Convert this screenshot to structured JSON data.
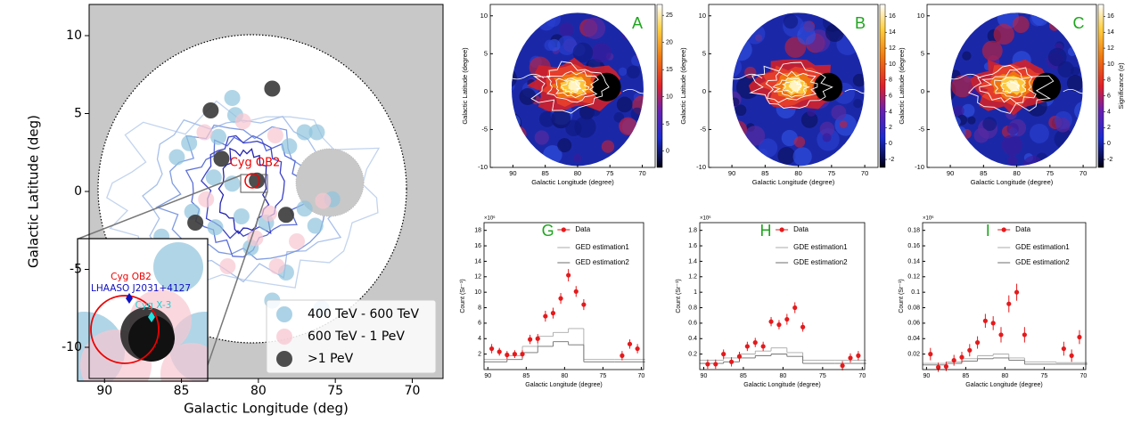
{
  "chart_data": [
    {
      "type": "scatter",
      "xlabel": "Galactic Longitude (deg)",
      "ylabel": "Galactic Latitude (deg)",
      "xlim": [
        91,
        68
      ],
      "ylim": [
        -12,
        12
      ],
      "xticks": [
        90,
        85,
        80,
        75,
        70
      ],
      "yticks": [
        -10,
        -5,
        0,
        5,
        10
      ],
      "legend": "lower right",
      "series": [
        {
          "name": "400 TeV - 600 TeV",
          "color": "#8fc3dd",
          "x": [
            81.7,
            81.5,
            84.5,
            82.6,
            77.0,
            76.2,
            78.0,
            85.3,
            82.9,
            81.7,
            84.3,
            82.8,
            81.1,
            79.5,
            77.0,
            75.2,
            76.3,
            80.5,
            78.2,
            75.9,
            79.1,
            86.3,
            88.6
          ],
          "y": [
            6.0,
            4.9,
            3.1,
            3.5,
            3.8,
            3.8,
            2.9,
            2.2,
            0.9,
            0.5,
            -1.3,
            -2.3,
            -1.6,
            -2.0,
            -1.1,
            -0.5,
            -2.2,
            -3.6,
            -5.2,
            -7.5,
            -7.0,
            -2.9,
            -3.6
          ]
        },
        {
          "name": "600 TeV - 1 PeV",
          "color": "#f8c6d0",
          "x": [
            83.5,
            78.9,
            81.0,
            83.4,
            79.3,
            80.2,
            77.5,
            78.8,
            82.0,
            85.2,
            75.8
          ],
          "y": [
            3.8,
            3.6,
            4.5,
            -0.5,
            -1.4,
            -3.0,
            -3.2,
            -4.8,
            -4.8,
            -6.1,
            -0.6
          ]
        },
        {
          "name": ">1 PeV",
          "color": "#3a3a3a",
          "x": [
            79.1,
            83.1,
            82.4,
            80.1,
            84.1,
            78.2
          ],
          "y": [
            6.6,
            5.2,
            2.1,
            0.7,
            -2.0,
            -1.5
          ]
        }
      ],
      "annotation": "Cyg OB2",
      "inset_annotations": [
        "Cyg OB2",
        "LHAASO J2031+4127",
        "Cyg X-3"
      ]
    },
    {
      "type": "heatmap",
      "panel": "A",
      "xlabel": "Galactic Longitude (degree)",
      "ylabel": "Galactic Latitude (degree)",
      "xlim": [
        93.5,
        68
      ],
      "ylim": [
        -10,
        11.5
      ],
      "xticks": [
        90,
        85,
        80,
        75,
        70
      ],
      "yticks": [
        -10,
        -5,
        0,
        5,
        10
      ],
      "clim": [
        -3,
        27
      ],
      "cticks": [
        0,
        5,
        10,
        15,
        20,
        25
      ]
    },
    {
      "type": "heatmap",
      "panel": "B",
      "xlabel": "Galactic Longitude (degree)",
      "ylabel": "Galactic Latitude (degree)",
      "xlim": [
        93.5,
        68
      ],
      "ylim": [
        -10,
        11.5
      ],
      "xticks": [
        90,
        85,
        80,
        75,
        70
      ],
      "yticks": [
        -10,
        -5,
        0,
        5,
        10
      ],
      "clim": [
        -3,
        17.5
      ],
      "cticks": [
        -2,
        0,
        2,
        4,
        6,
        8,
        10,
        12,
        14,
        16
      ]
    },
    {
      "type": "heatmap",
      "panel": "C",
      "xlabel": "Galactic Longitude (degree)",
      "ylabel": "Galactic Latitude (degree)",
      "xlim": [
        93.5,
        68
      ],
      "ylim": [
        -10,
        11.5
      ],
      "xticks": [
        90,
        85,
        80,
        75,
        70
      ],
      "yticks": [
        -10,
        -5,
        0,
        5,
        10
      ],
      "clim": [
        -3,
        17.5
      ],
      "cticks": [
        -2,
        0,
        2,
        4,
        6,
        8,
        10,
        12,
        14,
        16
      ],
      "colorbar_label": "Significance (σ)"
    },
    {
      "type": "errorbar",
      "panel": "G",
      "xlabel": "Galactic Longitude (degree)",
      "ylabel": "Count (Sr⁻¹)",
      "y_multiplier": "×10⁶",
      "xlim": [
        90.5,
        69.7
      ],
      "ylim": [
        0,
        19
      ],
      "xticks": [
        90,
        85,
        80,
        75,
        70
      ],
      "yticks": [
        2,
        4,
        6,
        8,
        10,
        12,
        14,
        16,
        18
      ],
      "x": [
        89.5,
        88.5,
        87.5,
        86.5,
        85.5,
        84.5,
        83.5,
        82.5,
        81.5,
        80.5,
        79.5,
        78.5,
        77.5,
        72.5,
        71.5,
        70.5
      ],
      "series": [
        {
          "name": "Data",
          "color": "#e41a1c",
          "values": [
            2.7,
            2.3,
            1.9,
            2.0,
            2.0,
            3.9,
            4.0,
            6.9,
            7.3,
            9.2,
            12.2,
            10.1,
            8.4,
            1.8,
            3.3,
            2.7
          ],
          "errors": [
            0.6,
            0.5,
            0.5,
            0.5,
            0.5,
            0.6,
            0.6,
            0.7,
            0.7,
            0.7,
            0.8,
            0.7,
            0.7,
            0.6,
            0.6,
            0.6
          ]
        }
      ],
      "steps": [
        {
          "name": "GED estimation1",
          "color": "#a8a8a8",
          "bins": [
            90.5,
            87.5,
            85.5,
            83.5,
            81.5,
            79.5,
            77.5,
            73.5,
            69.5
          ],
          "values": [
            1.3,
            1.8,
            3.0,
            4.3,
            4.8,
            5.3,
            1.3,
            1.3
          ]
        },
        {
          "name": "GED estimation2",
          "color": "#6e6e6e",
          "bins": [
            90.5,
            87.5,
            85.5,
            83.5,
            81.5,
            79.5,
            77.5,
            73.5,
            69.5
          ],
          "values": [
            1.0,
            1.3,
            2.2,
            3.0,
            3.6,
            3.2,
            1.0,
            1.0
          ]
        }
      ]
    },
    {
      "type": "errorbar",
      "panel": "H",
      "xlabel": "Galactic Longitude (degree)",
      "ylabel": "Count (Sr⁻¹)",
      "y_multiplier": "×10⁶",
      "xlim": [
        90.5,
        69.7
      ],
      "ylim": [
        0,
        1.9
      ],
      "xticks": [
        90,
        85,
        80,
        75,
        70
      ],
      "yticks": [
        0.2,
        0.4,
        0.6,
        0.8,
        1,
        1.2,
        1.4,
        1.6,
        1.8
      ],
      "x": [
        89.5,
        88.5,
        87.5,
        86.5,
        85.5,
        84.5,
        83.5,
        82.5,
        81.5,
        80.5,
        79.5,
        78.5,
        77.5,
        72.5,
        71.5,
        70.5
      ],
      "series": [
        {
          "name": "Data",
          "color": "#e41a1c",
          "values": [
            0.07,
            0.07,
            0.2,
            0.1,
            0.17,
            0.3,
            0.35,
            0.3,
            0.62,
            0.58,
            0.65,
            0.8,
            0.55,
            0.05,
            0.15,
            0.18
          ],
          "errors": [
            0.06,
            0.06,
            0.06,
            0.06,
            0.06,
            0.06,
            0.06,
            0.06,
            0.06,
            0.06,
            0.07,
            0.07,
            0.06,
            0.06,
            0.06,
            0.06
          ]
        }
      ],
      "steps": [
        {
          "name": "GDE estimation1",
          "color": "#a8a8a8",
          "bins": [
            90.5,
            87.5,
            85.5,
            83.5,
            81.5,
            79.5,
            77.5,
            73.5,
            69.5
          ],
          "values": [
            0.12,
            0.15,
            0.2,
            0.24,
            0.28,
            0.22,
            0.12,
            0.12
          ]
        },
        {
          "name": "GDE estimation2",
          "color": "#6e6e6e",
          "bins": [
            90.5,
            87.5,
            85.5,
            83.5,
            81.5,
            79.5,
            77.5,
            73.5,
            69.5
          ],
          "values": [
            0.08,
            0.1,
            0.15,
            0.18,
            0.2,
            0.17,
            0.08,
            0.08
          ]
        }
      ]
    },
    {
      "type": "errorbar",
      "panel": "I",
      "xlabel": "Galactic Longitude (degree)",
      "ylabel": "Count (Sr⁻¹)",
      "y_multiplier": "×10⁶",
      "xlim": [
        90.5,
        69.7
      ],
      "ylim": [
        0,
        0.19
      ],
      "xticks": [
        90,
        85,
        80,
        75,
        70
      ],
      "yticks": [
        0.02,
        0.04,
        0.06,
        0.08,
        0.1,
        0.12,
        0.14,
        0.16,
        0.18
      ],
      "x": [
        89.5,
        88.5,
        87.5,
        86.5,
        85.5,
        84.5,
        83.5,
        82.5,
        81.5,
        80.5,
        79.5,
        78.5,
        77.5,
        72.5,
        71.5,
        70.5
      ],
      "series": [
        {
          "name": "Data",
          "color": "#e41a1c",
          "values": [
            0.02,
            0.003,
            0.004,
            0.012,
            0.016,
            0.025,
            0.035,
            0.063,
            0.06,
            0.045,
            0.085,
            0.1,
            0.045,
            0.027,
            0.018,
            0.042
          ],
          "errors": [
            0.008,
            0.006,
            0.006,
            0.007,
            0.007,
            0.008,
            0.008,
            0.009,
            0.009,
            0.01,
            0.011,
            0.011,
            0.01,
            0.009,
            0.008,
            0.009
          ]
        }
      ],
      "steps": [
        {
          "name": "GDE estimation1",
          "color": "#a8a8a8",
          "bins": [
            90.5,
            87.5,
            85.5,
            83.5,
            81.5,
            79.5,
            77.5,
            73.5,
            69.5
          ],
          "values": [
            0.008,
            0.01,
            0.014,
            0.018,
            0.02,
            0.015,
            0.01,
            0.009
          ]
        },
        {
          "name": "GDE estimation2",
          "color": "#6e6e6e",
          "bins": [
            90.5,
            87.5,
            85.5,
            83.5,
            81.5,
            79.5,
            77.5,
            73.5,
            69.5
          ],
          "values": [
            0.006,
            0.008,
            0.011,
            0.014,
            0.015,
            0.012,
            0.007,
            0.007
          ]
        }
      ]
    }
  ]
}
